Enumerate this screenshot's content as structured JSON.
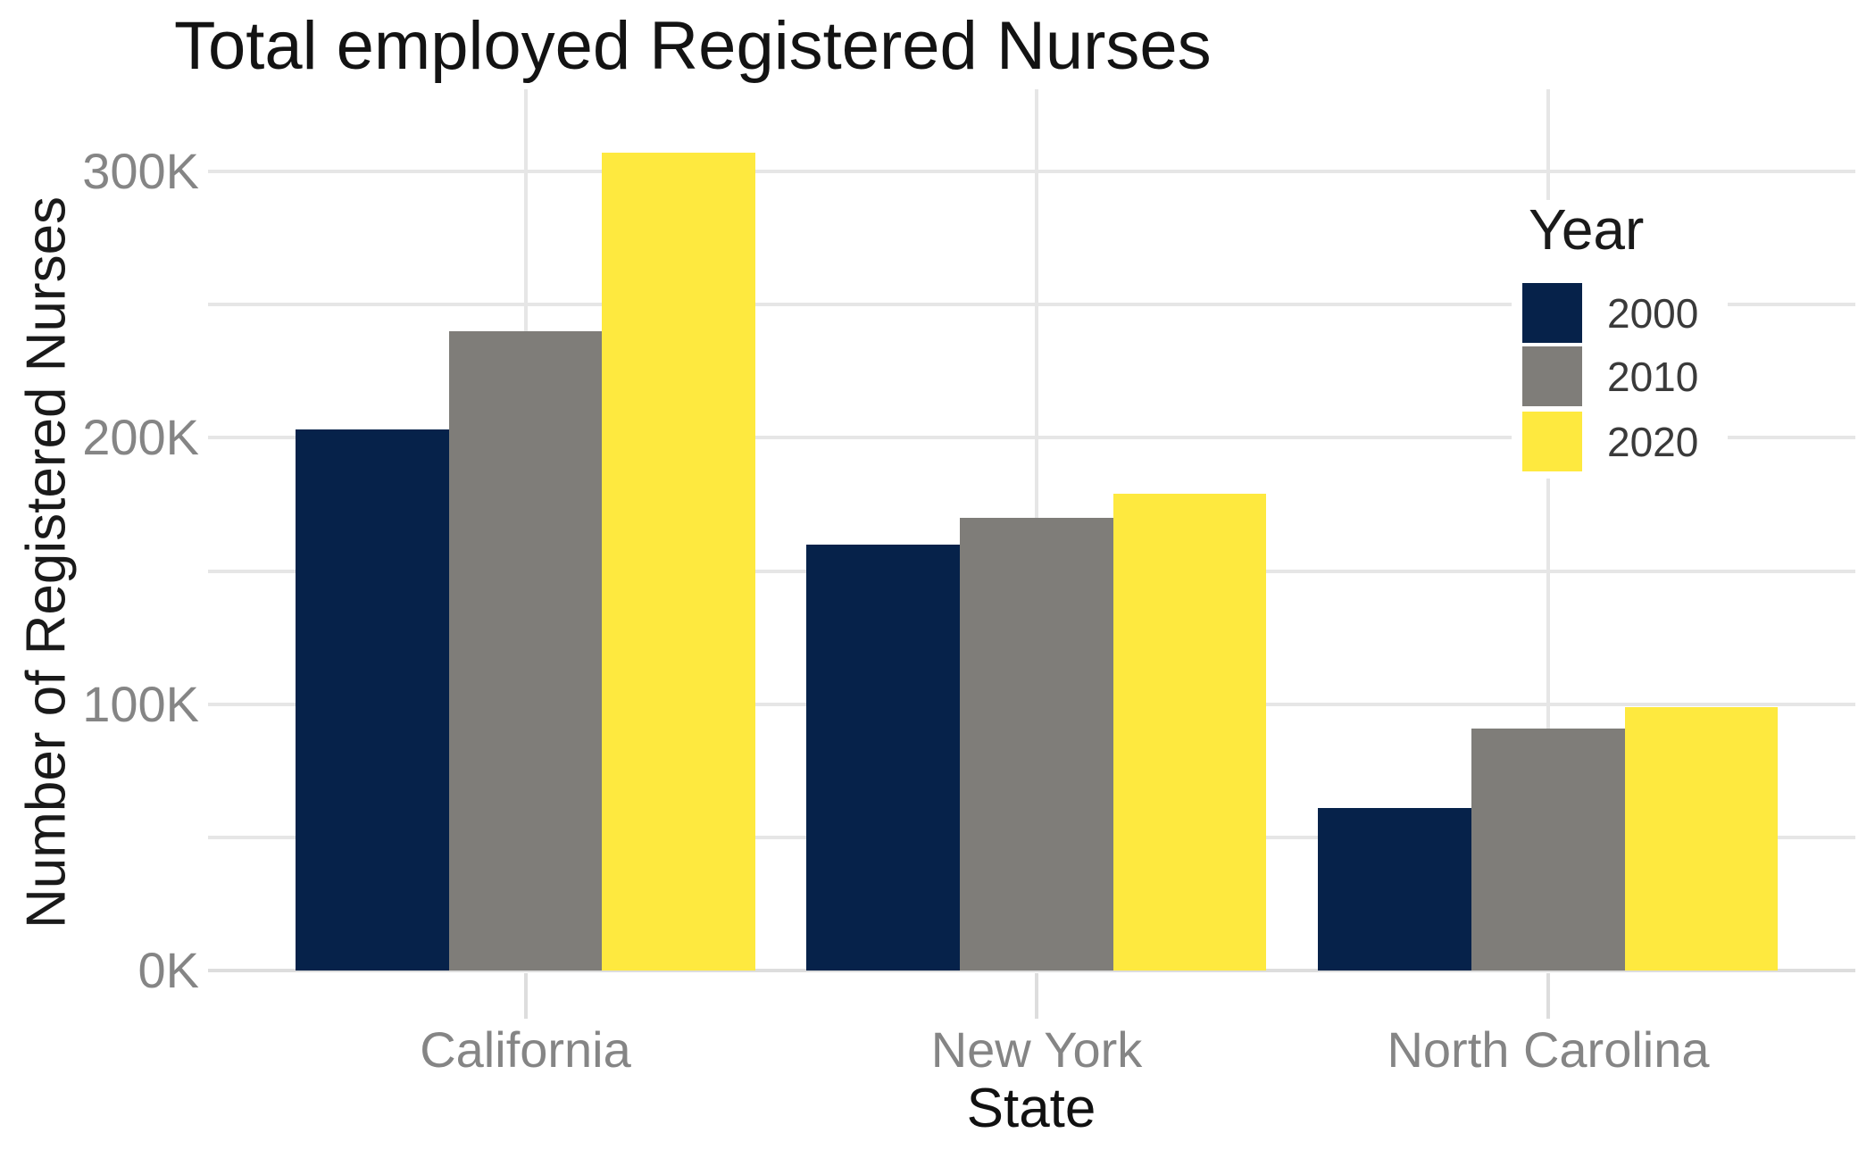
{
  "title": "Total employed Registered Nurses",
  "chart_data": {
    "type": "bar",
    "title": "Total employed Registered Nurses",
    "categories": [
      "California",
      "New York",
      "North Carolina"
    ],
    "series": [
      {
        "name": "2000",
        "color": "#06224A",
        "values": [
          203000,
          160000,
          61000
        ]
      },
      {
        "name": "2010",
        "color": "#7F7D79",
        "values": [
          240000,
          170000,
          91000
        ]
      },
      {
        "name": "2020",
        "color": "#FEE93F",
        "values": [
          307000,
          179000,
          99000
        ]
      }
    ],
    "xlabel": "State",
    "ylabel": "Number of Registered Nurses",
    "ylim": [
      0,
      310000
    ],
    "yticks": [
      {
        "value": 0,
        "label": "0K"
      },
      {
        "value": 100000,
        "label": "100K"
      },
      {
        "value": 200000,
        "label": "200K"
      },
      {
        "value": 300000,
        "label": "300K"
      }
    ],
    "grid_interval": 50000,
    "grid": true,
    "legend_title": "Year",
    "legend_position": "inside-top-right"
  },
  "colors": {
    "background": "#FFFFFF",
    "gridline": "#E6E6E6",
    "baseline": "#DDDDDD",
    "tick": "#DDDDDD",
    "axis_text": "#858585",
    "title_text": "#131313"
  }
}
